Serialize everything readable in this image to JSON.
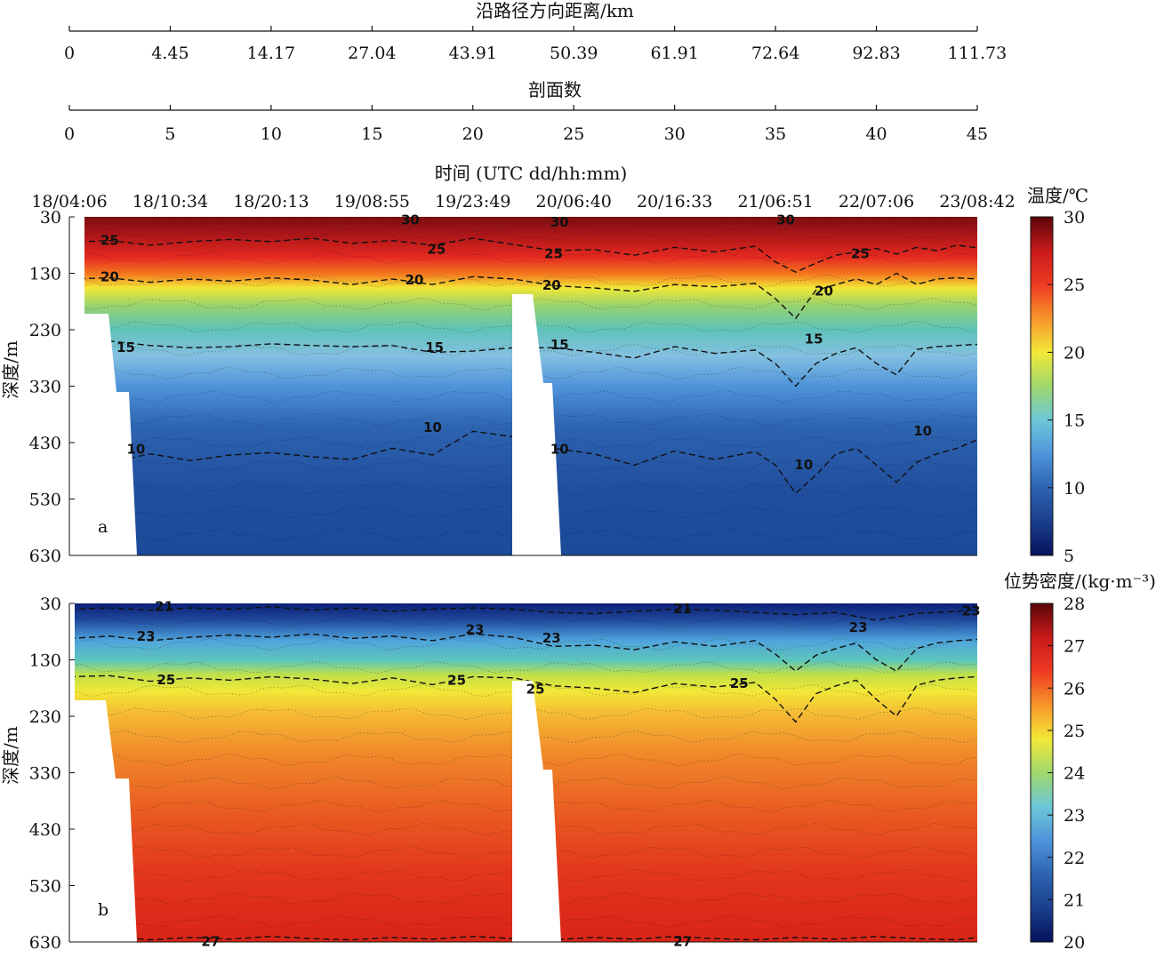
{
  "chart_data": [
    {
      "type": "axis",
      "label": "沿路径方向距离/km",
      "ticks": [
        "0",
        "4.45",
        "14.17",
        "27.04",
        "43.91",
        "50.39",
        "61.91",
        "72.64",
        "92.83",
        "111.73"
      ]
    },
    {
      "type": "axis",
      "label": "剖面数",
      "range": [
        0,
        45
      ],
      "ticks": [
        "0",
        "5",
        "10",
        "15",
        "20",
        "25",
        "30",
        "35",
        "40",
        "45"
      ]
    },
    {
      "type": "heatmap",
      "panel": "a",
      "time_axis_label": "时间 (UTC dd/hh:mm)",
      "time_ticks": [
        "18/04:06",
        "18/10:34",
        "18/20:13",
        "19/08:55",
        "19/23:49",
        "20/06:40",
        "20/16:33",
        "21/06:51",
        "22/07:06",
        "23/08:42"
      ],
      "ylabel": "深度/m",
      "yticks": [
        30,
        130,
        230,
        330,
        430,
        530,
        630
      ],
      "ylim": [
        630,
        30
      ],
      "xlim": [
        0,
        45
      ],
      "colorbar_label": "温度/℃",
      "colorbar_ticks": [
        5,
        10,
        15,
        20,
        25,
        30
      ],
      "zlim": [
        5,
        30
      ],
      "contour_values": [
        30,
        25,
        20,
        15,
        10
      ],
      "contour_labels": [
        {
          "text": "25",
          "x": 2.0,
          "depth": 70
        },
        {
          "text": "20",
          "x": 2.0,
          "depth": 135
        },
        {
          "text": "15",
          "x": 2.8,
          "depth": 260
        },
        {
          "text": "10",
          "x": 3.3,
          "depth": 440
        },
        {
          "text": "30",
          "x": 16.9,
          "depth": 34
        },
        {
          "text": "25",
          "x": 18.2,
          "depth": 86
        },
        {
          "text": "20",
          "x": 17.1,
          "depth": 140
        },
        {
          "text": "15",
          "x": 18.1,
          "depth": 260
        },
        {
          "text": "10",
          "x": 18.0,
          "depth": 402
        },
        {
          "text": "30",
          "x": 24.3,
          "depth": 38
        },
        {
          "text": "25",
          "x": 24.0,
          "depth": 94
        },
        {
          "text": "20",
          "x": 23.9,
          "depth": 150
        },
        {
          "text": "15",
          "x": 24.3,
          "depth": 255
        },
        {
          "text": "10",
          "x": 24.3,
          "depth": 440
        },
        {
          "text": "30",
          "x": 35.5,
          "depth": 34
        },
        {
          "text": "25",
          "x": 39.2,
          "depth": 94
        },
        {
          "text": "20",
          "x": 37.4,
          "depth": 160
        },
        {
          "text": "15",
          "x": 36.9,
          "depth": 245
        },
        {
          "text": "10",
          "x": 36.4,
          "depth": 468
        },
        {
          "text": "10",
          "x": 42.3,
          "depth": 408
        }
      ],
      "series": [
        {
          "name": "25",
          "x": [
            0,
            2,
            4,
            6,
            8,
            10,
            12,
            14,
            16,
            18,
            20,
            24,
            26,
            28,
            30,
            32,
            34,
            35,
            36,
            37,
            38,
            39,
            40,
            41,
            42,
            43,
            44,
            45
          ],
          "depth": [
            75,
            72,
            80,
            74,
            70,
            74,
            68,
            77,
            72,
            80,
            68,
            90,
            88,
            98,
            84,
            92,
            82,
            110,
            128,
            112,
            98,
            92,
            86,
            96,
            84,
            90,
            80,
            85
          ]
        },
        {
          "name": "20",
          "x": [
            0,
            2,
            4,
            6,
            8,
            10,
            12,
            14,
            16,
            18,
            20,
            22,
            24,
            26,
            28,
            30,
            32,
            34,
            35,
            36,
            37,
            38,
            39,
            40,
            41,
            42,
            43,
            44,
            45
          ],
          "depth": [
            140,
            138,
            146,
            140,
            144,
            138,
            142,
            150,
            140,
            150,
            136,
            140,
            152,
            156,
            162,
            150,
            154,
            148,
            175,
            210,
            160,
            150,
            140,
            150,
            130,
            150,
            140,
            138,
            140
          ]
        },
        {
          "name": "15",
          "x": [
            0,
            2,
            4,
            6,
            8,
            10,
            12,
            14,
            16,
            18,
            20,
            22,
            24,
            26,
            28,
            30,
            32,
            34,
            35,
            36,
            37,
            38,
            39,
            40,
            41,
            42,
            43,
            44,
            45
          ],
          "depth": [
            255,
            250,
            258,
            262,
            260,
            255,
            258,
            260,
            258,
            270,
            268,
            262,
            262,
            270,
            280,
            260,
            272,
            266,
            290,
            330,
            290,
            272,
            262,
            290,
            310,
            265,
            260,
            258,
            256
          ]
        },
        {
          "name": "10",
          "x": [
            2,
            4,
            6,
            8,
            10,
            12,
            14,
            16,
            18,
            20,
            22,
            24,
            26,
            28,
            30,
            32,
            34,
            35,
            36,
            37,
            38,
            39,
            40,
            41,
            42,
            43,
            44,
            45
          ],
          "depth": [
            465,
            450,
            462,
            452,
            448,
            455,
            460,
            440,
            452,
            410,
            420,
            440,
            450,
            470,
            445,
            460,
            446,
            470,
            520,
            488,
            450,
            440,
            470,
            500,
            465,
            450,
            440,
            425
          ]
        }
      ],
      "annotation": "a",
      "colors": {
        "c5": "#0a1f74",
        "c10": "#2d64b0",
        "c15": "#84c0e0",
        "c20": "#f2e837",
        "c25": "#e52a20",
        "c30": "#7a0d10"
      }
    },
    {
      "type": "heatmap",
      "panel": "b",
      "ylabel": "深度/m",
      "yticks": [
        30,
        130,
        230,
        330,
        430,
        530,
        630
      ],
      "ylim": [
        630,
        30
      ],
      "xlim": [
        0,
        45
      ],
      "colorbar_label": "位势密度/(kg·m⁻³)",
      "colorbar_ticks": [
        20,
        21,
        22,
        23,
        24,
        25,
        26,
        27,
        28
      ],
      "zlim": [
        20,
        28
      ],
      "contour_values": [
        21,
        23,
        25,
        27
      ],
      "contour_labels": [
        {
          "text": "21",
          "x": 4.7,
          "depth": 34
        },
        {
          "text": "23",
          "x": 3.8,
          "depth": 87
        },
        {
          "text": "25",
          "x": 4.8,
          "depth": 164
        },
        {
          "text": "27",
          "x": 7.0,
          "depth": 628
        },
        {
          "text": "23",
          "x": 20.1,
          "depth": 75
        },
        {
          "text": "25",
          "x": 19.2,
          "depth": 165
        },
        {
          "text": "23",
          "x": 23.9,
          "depth": 90
        },
        {
          "text": "25",
          "x": 23.1,
          "depth": 180
        },
        {
          "text": "21",
          "x": 30.4,
          "depth": 38
        },
        {
          "text": "25",
          "x": 33.2,
          "depth": 170
        },
        {
          "text": "23",
          "x": 39.1,
          "depth": 71
        },
        {
          "text": "23",
          "x": 44.7,
          "depth": 42
        },
        {
          "text": "27",
          "x": 30.4,
          "depth": 628
        }
      ],
      "series": [
        {
          "name": "21",
          "x": [
            0,
            2,
            4,
            6,
            8,
            10,
            12,
            14,
            16,
            18,
            20,
            22,
            24,
            26,
            28,
            30,
            32,
            34,
            36,
            38,
            40,
            42,
            44,
            45
          ],
          "depth": [
            40,
            38,
            42,
            38,
            40,
            36,
            42,
            38,
            44,
            40,
            38,
            40,
            46,
            48,
            44,
            40,
            42,
            46,
            50,
            46,
            60,
            48,
            44,
            40
          ]
        },
        {
          "name": "23",
          "x": [
            0,
            2,
            4,
            6,
            8,
            10,
            12,
            14,
            16,
            18,
            20,
            22,
            24,
            26,
            28,
            30,
            32,
            34,
            35,
            36,
            37,
            38,
            39,
            40,
            41,
            42,
            43,
            44,
            45
          ],
          "depth": [
            92,
            88,
            96,
            90,
            86,
            90,
            84,
            92,
            88,
            96,
            84,
            90,
            106,
            104,
            112,
            98,
            106,
            96,
            120,
            150,
            122,
            110,
            100,
            130,
            150,
            110,
            100,
            96,
            94
          ]
        },
        {
          "name": "25",
          "x": [
            0,
            2,
            4,
            6,
            8,
            10,
            12,
            14,
            16,
            18,
            20,
            22,
            24,
            26,
            28,
            30,
            32,
            34,
            35,
            36,
            37,
            38,
            39,
            40,
            41,
            42,
            43,
            44,
            45
          ],
          "depth": [
            160,
            158,
            168,
            162,
            166,
            160,
            164,
            172,
            162,
            174,
            160,
            162,
            176,
            180,
            188,
            172,
            178,
            170,
            200,
            240,
            190,
            176,
            166,
            200,
            230,
            175,
            166,
            162,
            160
          ]
        },
        {
          "name": "27",
          "x": [
            0,
            2,
            4,
            6,
            8,
            10,
            12,
            14,
            16,
            18,
            20,
            22,
            24,
            26,
            28,
            30,
            32,
            34,
            36,
            38,
            40,
            42,
            44,
            45
          ],
          "depth": [
            624,
            620,
            626,
            622,
            625,
            620,
            624,
            626,
            622,
            625,
            620,
            624,
            626,
            622,
            625,
            620,
            624,
            626,
            622,
            625,
            620,
            624,
            626,
            622
          ]
        }
      ],
      "annotation": "b",
      "colors": {
        "c20": "#0a1f74",
        "c22": "#3a7cc8",
        "c24": "#e8ea44",
        "c26": "#f08a2a",
        "c28": "#7a0d10"
      }
    }
  ]
}
